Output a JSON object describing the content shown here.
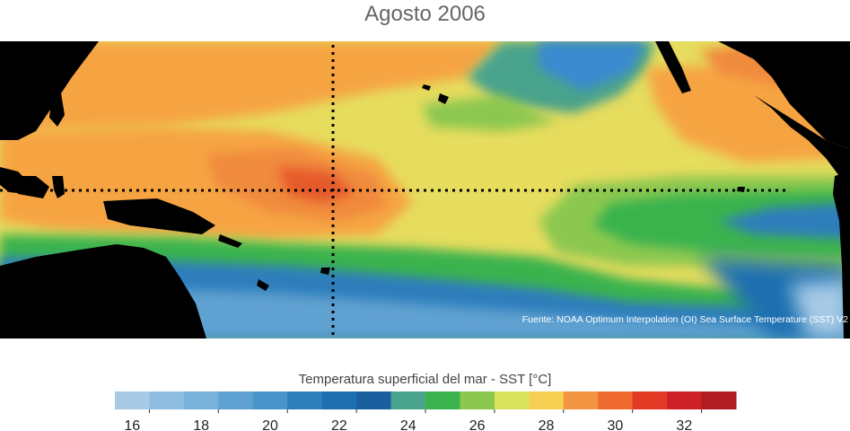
{
  "title": "Agosto 2006",
  "source": "Fuente: NOAA Optimum Interpolation (OI) Sea Surface Temperature (SST) V2",
  "colorbar": {
    "title": "Temperatura superficial del mar - SST  [°C]",
    "tick_labels": [
      "16",
      "18",
      "20",
      "22",
      "24",
      "26",
      "28",
      "30",
      "32"
    ],
    "colors": [
      "#a6cae6",
      "#8ebde0",
      "#78b1d9",
      "#5fa1d0",
      "#4a93c8",
      "#2e7ebc",
      "#1e6fb0",
      "#1b5f9f",
      "#4aa38c",
      "#3ab34e",
      "#8cc850",
      "#d9e25b",
      "#f6cf52",
      "#f39542",
      "#ef6a2e",
      "#e03a25",
      "#cc2127",
      "#b11b22"
    ]
  },
  "map": {
    "land_color": "#000000",
    "reference_lines": [
      "equator",
      "dateline"
    ]
  }
}
